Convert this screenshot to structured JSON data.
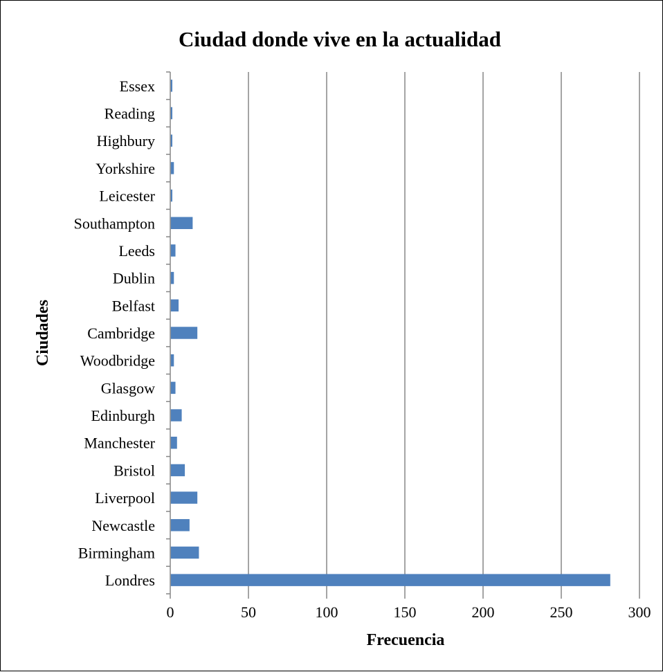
{
  "chart_data": {
    "type": "bar",
    "orientation": "horizontal",
    "title": "Ciudad donde vive en la actualidad",
    "xlabel": "Frecuencia",
    "ylabel": "Ciudades",
    "xlim": [
      0,
      300
    ],
    "xticks": [
      "0",
      "50",
      "100",
      "150",
      "200",
      "250",
      "300"
    ],
    "grid": "vertical",
    "legend": "none",
    "bar_color": "#4F81BD",
    "categories": [
      "Londres",
      "Birmingham",
      "Newcastle",
      "Liverpool",
      "Bristol",
      "Manchester",
      "Edinburgh",
      "Glasgow",
      "Woodbridge",
      "Cambridge",
      "Belfast",
      "Dublin",
      "Leeds",
      "Southampton",
      "Leicester",
      "Yorkshire",
      "Highbury",
      "Reading",
      "Essex"
    ],
    "values": [
      281,
      18,
      12,
      17,
      9,
      4,
      7,
      3,
      2,
      17,
      5,
      2,
      3,
      14,
      1,
      2,
      1,
      1,
      1
    ]
  }
}
